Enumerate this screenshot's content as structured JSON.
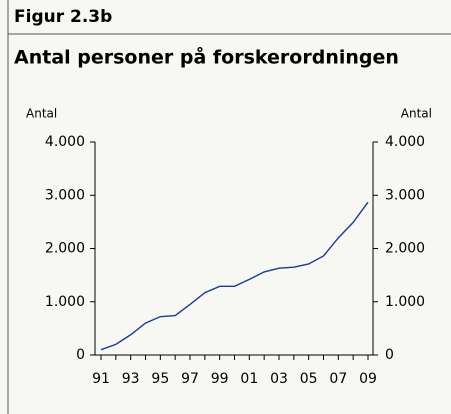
{
  "chart_data": {
    "type": "line",
    "figure_label": "Figur 2.3b",
    "title": "Antal personer på forskerordningen",
    "ylabel": "Antal",
    "y2label": "Antal",
    "categories": [
      "91",
      null,
      "93",
      null,
      "95",
      null,
      "97",
      null,
      "99",
      null,
      "01",
      null,
      "03",
      null,
      "05",
      null,
      "07",
      null,
      "09"
    ],
    "series": [
      {
        "name": "Antal personer",
        "color": "#1f3a8f",
        "values": [
          100,
          200,
          380,
          600,
          720,
          740,
          950,
          1170,
          1290,
          1290,
          1420,
          1560,
          1630,
          1650,
          1710,
          1860,
          2200,
          2490,
          2870
        ]
      }
    ],
    "ylim": [
      0,
      4000
    ],
    "yticks": [
      0,
      {
        "value": 1000,
        "label": "1.000"
      },
      {
        "value": 2000,
        "label": "2.000"
      },
      {
        "value": 3000,
        "label": "3.000"
      },
      {
        "value": 4000,
        "label": "4.000"
      }
    ],
    "y2lim": [
      0,
      4000
    ],
    "y2ticks": [
      0,
      {
        "value": 1000,
        "label": "1.000"
      },
      {
        "value": 2000,
        "label": "2.000"
      },
      {
        "value": 3000,
        "label": "3.000"
      },
      {
        "value": 4000,
        "label": "4.000"
      }
    ],
    "grid": false
  }
}
